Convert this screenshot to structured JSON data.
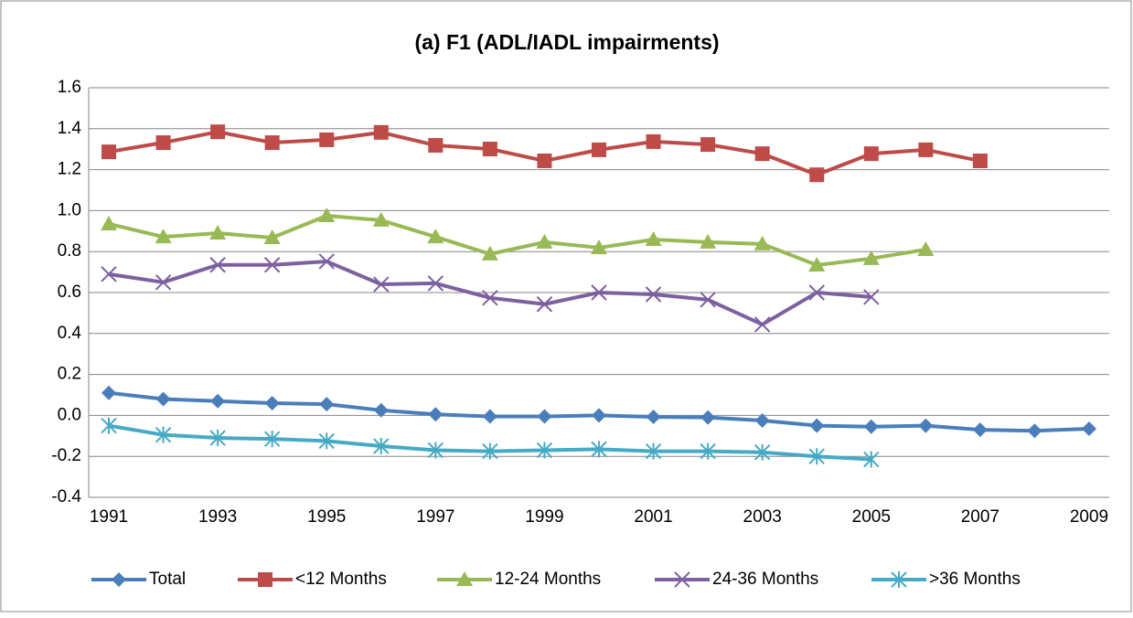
{
  "chart_data": {
    "type": "line",
    "title": "(a) F1  (ADL/IADL impairments)",
    "categories": [
      "1991",
      null,
      "1993",
      null,
      "1995",
      null,
      "1997",
      null,
      "1999",
      null,
      "2001",
      null,
      "2003",
      null,
      "2005",
      null,
      "2007",
      null,
      "2009"
    ],
    "ylim": [
      -0.4,
      1.6
    ],
    "yticks": [
      -0.4,
      -0.2,
      {
        "value": 0,
        "label": "0.0"
      },
      0.2,
      0.4,
      0.6,
      0.8,
      {
        "value": 1,
        "label": "1.0"
      },
      1.2,
      1.4,
      1.6
    ],
    "grid": true,
    "legend": "bottom",
    "series": [
      {
        "name": "Total",
        "color": "#4a7ebb",
        "marker": "diamond",
        "values": [
          0.11,
          0.08,
          0.07,
          0.06,
          0.055,
          0.025,
          0.005,
          -0.005,
          -0.005,
          0.0,
          -0.007,
          -0.01,
          -0.025,
          -0.05,
          -0.055,
          -0.05,
          -0.07,
          -0.075,
          -0.065
        ]
      },
      {
        "name": "<12 Months",
        "color": "#be4b48",
        "marker": "square",
        "values": [
          1.287,
          1.332,
          1.385,
          1.332,
          1.346,
          1.382,
          1.319,
          1.301,
          1.243,
          1.297,
          1.337,
          1.323,
          1.278,
          1.175,
          1.278,
          1.297,
          1.243,
          null,
          null
        ]
      },
      {
        "name": "12-24 Months",
        "color": "#98b954",
        "marker": "triangle",
        "values": [
          0.935,
          0.872,
          0.89,
          0.868,
          0.975,
          0.953,
          0.872,
          0.788,
          0.846,
          0.819,
          0.859,
          0.846,
          0.837,
          0.734,
          0.766,
          0.81,
          null,
          null,
          null
        ]
      },
      {
        "name": "24-36 Months",
        "color": "#7d60a0",
        "marker": "x",
        "values": [
          0.69,
          0.65,
          0.735,
          0.735,
          0.752,
          0.64,
          0.645,
          0.574,
          0.543,
          0.6,
          0.591,
          0.565,
          0.444,
          0.6,
          0.578,
          null,
          null,
          null,
          null
        ]
      },
      {
        "name": ">36 Months",
        "color": "#46aac5",
        "marker": "asterisk",
        "values": [
          -0.05,
          -0.095,
          -0.11,
          -0.115,
          -0.125,
          -0.15,
          -0.17,
          -0.175,
          -0.17,
          -0.165,
          -0.175,
          -0.175,
          -0.18,
          -0.2,
          -0.215,
          null,
          null,
          null,
          null
        ]
      }
    ]
  }
}
